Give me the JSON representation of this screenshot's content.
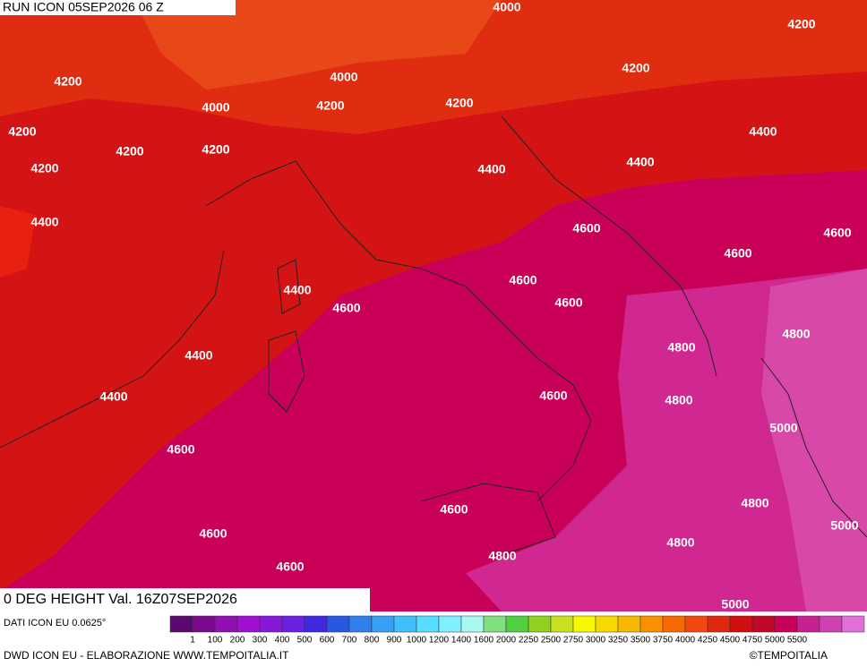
{
  "header": {
    "run": "RUN ICON 05SEP2026 06 Z"
  },
  "footer": {
    "title": "0 DEG HEIGHT Val. 16Z07SEP2026",
    "source": "DATI ICON EU 0.0625°",
    "credit": "DWD ICON EU - ELABORAZIONE WWW.TEMPOITALIA.IT",
    "copyright": "©TEMPOITALIA"
  },
  "legend": {
    "labels": [
      1,
      100,
      200,
      300,
      400,
      500,
      600,
      700,
      800,
      900,
      1000,
      1200,
      1400,
      1600,
      2000,
      2250,
      2500,
      2750,
      3000,
      3250,
      3500,
      3750,
      4000,
      4250,
      4500,
      4750,
      5000,
      5500
    ],
    "colors": [
      "#5a0a6e",
      "#7a0a8c",
      "#9010b0",
      "#a010d0",
      "#8818d8",
      "#6a20e0",
      "#4028e0",
      "#2858e0",
      "#3080ec",
      "#38a0f4",
      "#40c0fa",
      "#58dcff",
      "#80f0ff",
      "#a8f8f0",
      "#80e080",
      "#50d040",
      "#90d020",
      "#c8e020",
      "#f8f800",
      "#f8d800",
      "#f8b800",
      "#f89000",
      "#f86800",
      "#f04810",
      "#e02810",
      "#d01010",
      "#c00828",
      "#c8005a",
      "#c82090",
      "#d040b0",
      "#e070d8"
    ]
  },
  "map": {
    "contour_labels": [
      4000,
      4200,
      4200,
      4000,
      4200,
      4000,
      4200,
      4200,
      4200,
      4400,
      4200,
      4200,
      4400,
      4200,
      4400,
      4400,
      4600,
      4600,
      4600,
      4600,
      4400,
      4600,
      4600,
      4800,
      4800,
      4400,
      4400,
      4600,
      4800,
      5000,
      4600,
      4600,
      4800,
      5000,
      4600,
      4800,
      4800,
      4600,
      5000
    ]
  }
}
